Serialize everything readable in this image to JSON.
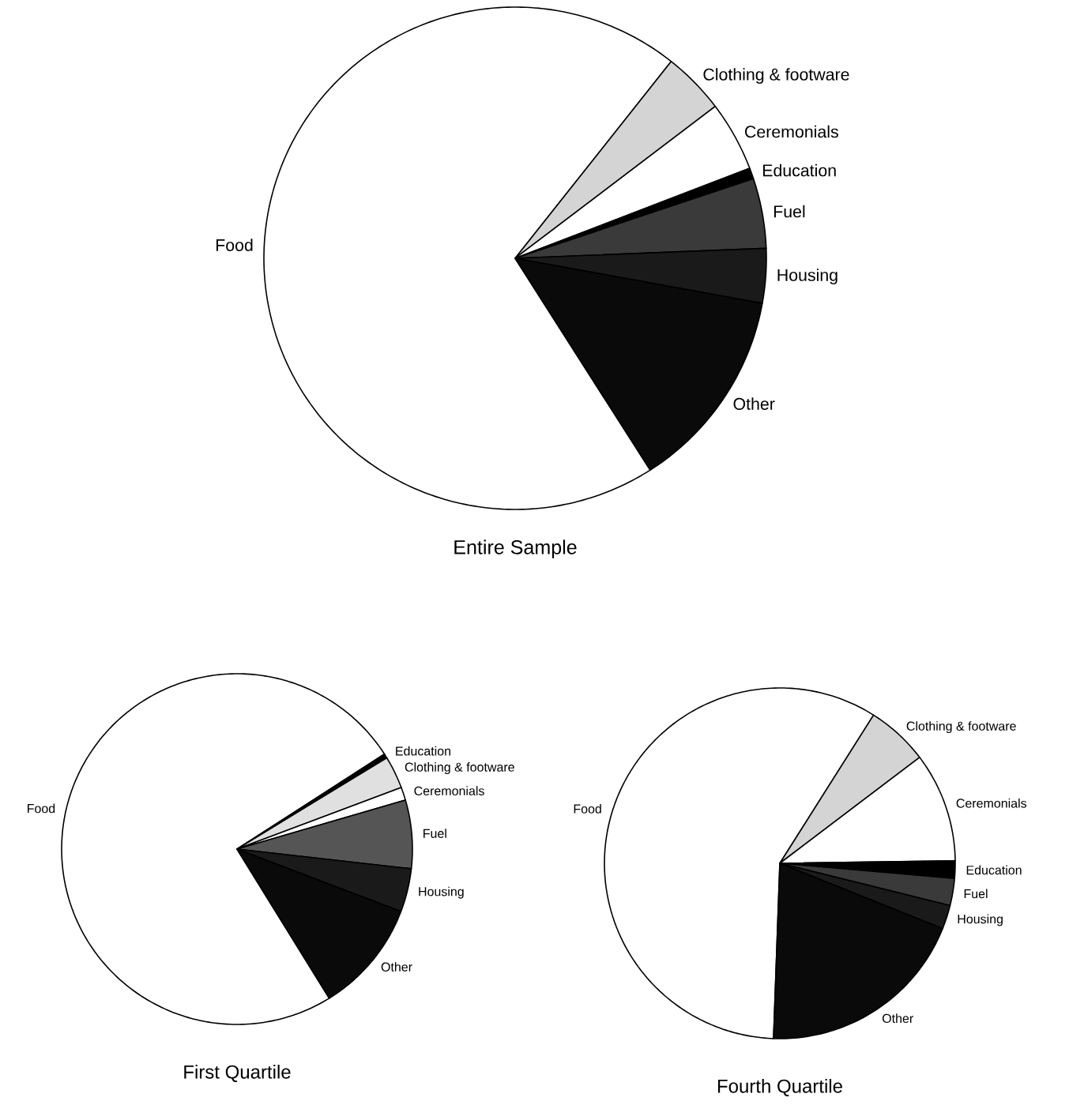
{
  "chart_data": [
    {
      "type": "pie",
      "title": "Entire Sample",
      "categories": [
        "Food",
        "Clothing & footware",
        "Ceremonials",
        "Education",
        "Fuel",
        "Housing",
        "Other"
      ],
      "values": [
        69.7,
        4.0,
        4.5,
        0.7,
        4.5,
        3.5,
        13.1
      ],
      "colors": [
        "#ffffff",
        "#d4d4d4",
        "#ffffff",
        "#000000",
        "#3a3a3a",
        "#1a1a1a",
        "#0a0a0a"
      ]
    },
    {
      "type": "pie",
      "title": "First Quartile",
      "categories": [
        "Food",
        "Education",
        "Clothing & footware",
        "Ceremonials",
        "Fuel",
        "Housing",
        "Other"
      ],
      "values": [
        74.7,
        0.4,
        3.0,
        1.2,
        6.3,
        4.0,
        10.4
      ],
      "colors": [
        "#ffffff",
        "#000000",
        "#e0e0e0",
        "#ffffff",
        "#555555",
        "#1a1a1a",
        "#0a0a0a"
      ]
    },
    {
      "type": "pie",
      "title": "Fourth Quartile",
      "categories": [
        "Food",
        "Clothing & footware",
        "Ceremonials",
        "Education",
        "Fuel",
        "Housing",
        "Other"
      ],
      "values": [
        58.4,
        5.7,
        10.1,
        1.6,
        2.5,
        2.2,
        19.5
      ],
      "colors": [
        "#ffffff",
        "#d4d4d4",
        "#ffffff",
        "#000000",
        "#3a3a3a",
        "#1a1a1a",
        "#0a0a0a"
      ]
    }
  ]
}
